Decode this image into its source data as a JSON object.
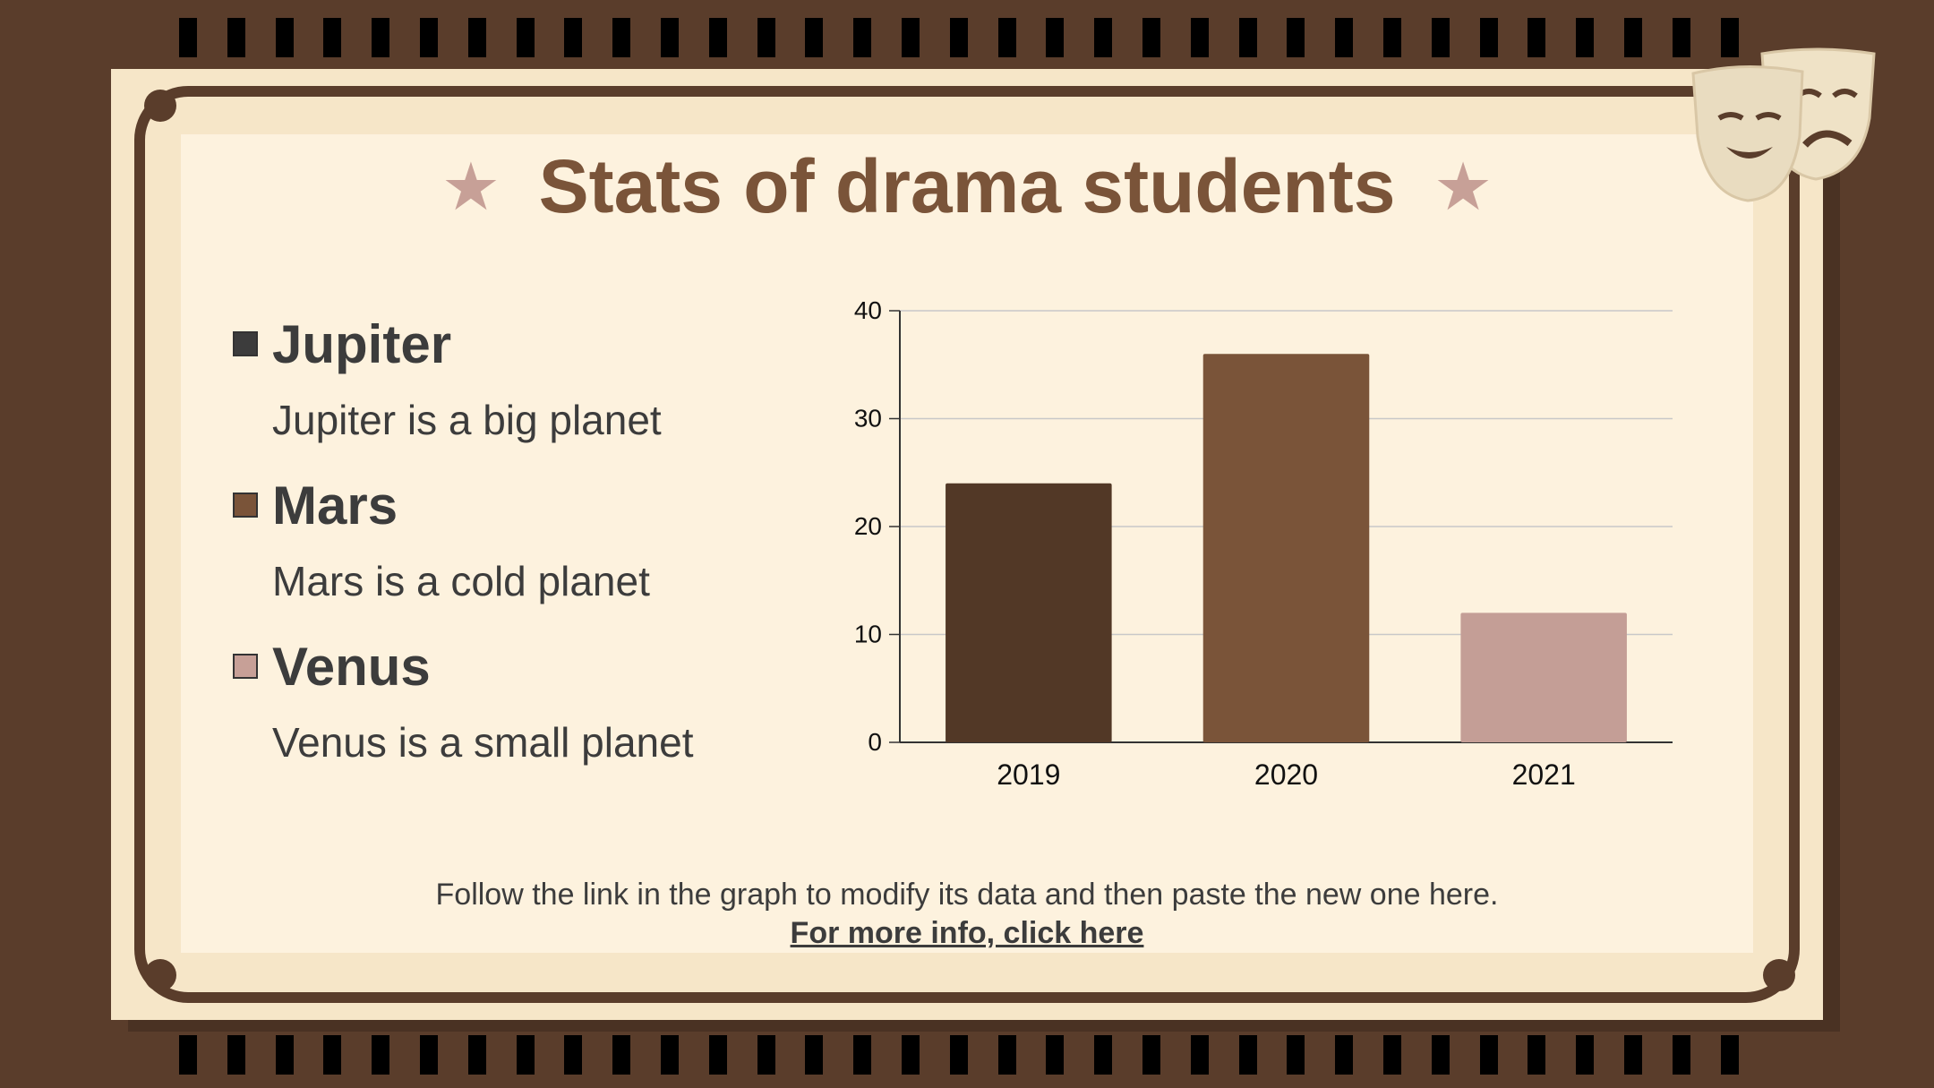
{
  "title": "Stats of drama students",
  "legend": [
    {
      "name": "Jupiter",
      "description": "Jupiter is a big planet",
      "color": "#3c3c3c"
    },
    {
      "name": "Mars",
      "description": "Mars is a cold planet",
      "color": "#7a5439"
    },
    {
      "name": "Venus",
      "description": "Venus is a small planet",
      "color": "#c7a097"
    }
  ],
  "footer": {
    "note": "Follow the link in the graph to modify its data and then paste the new one here.",
    "link": "For more info, click here"
  },
  "icons": [
    "star-icon",
    "theater-masks-icon"
  ],
  "colors": {
    "background": "#5a3d2b",
    "panel": "#fdf2de",
    "accent": "#7a5439",
    "star": "#c7a097"
  },
  "chart_data": {
    "type": "bar",
    "categories": [
      "2019",
      "2020",
      "2021"
    ],
    "values": [
      24,
      36,
      12
    ],
    "bar_colors": [
      "#523826",
      "#7a5439",
      "#c49e96"
    ],
    "title": "",
    "xlabel": "",
    "ylabel": "",
    "ylim": [
      0,
      40
    ],
    "yticks": [
      0,
      10,
      20,
      30,
      40
    ],
    "grid": true
  }
}
